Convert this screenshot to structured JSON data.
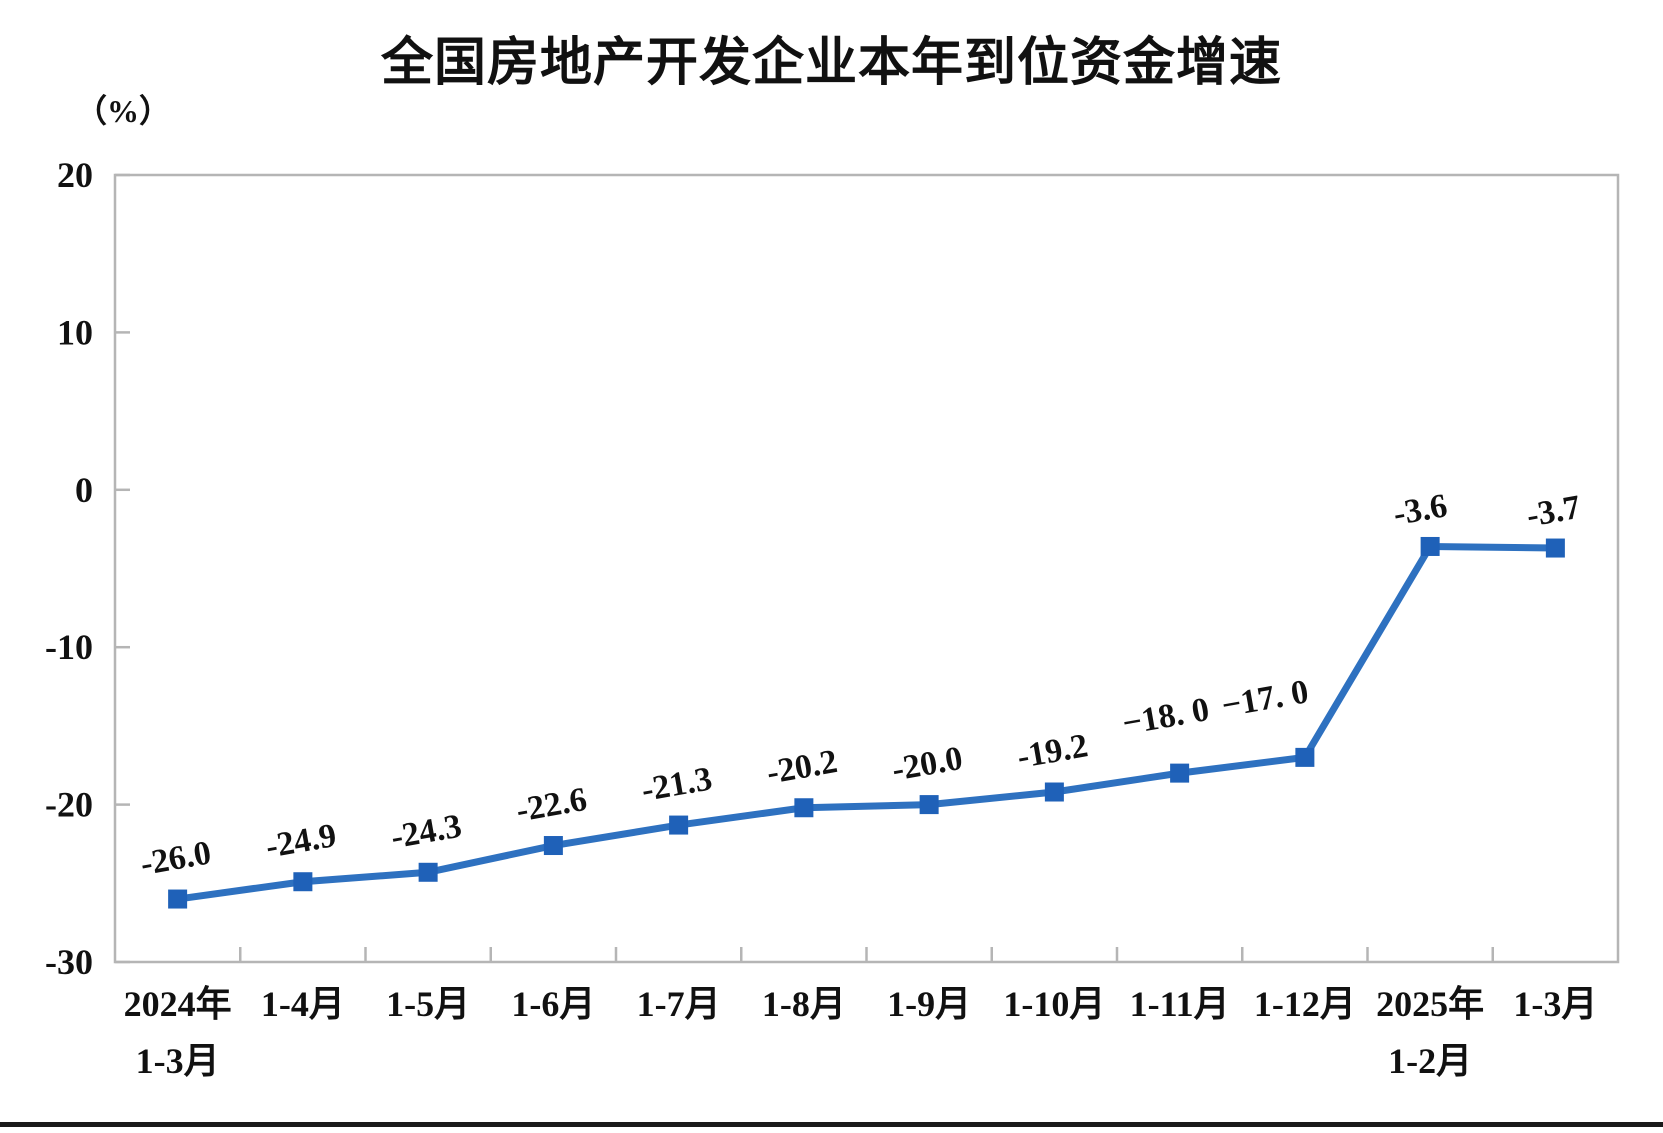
{
  "page": {
    "background": "#ffffff"
  },
  "chart_data": {
    "type": "line",
    "title": "全国房地产开发企业本年到位资金增速",
    "ylabel": "（%）",
    "xlabel": "",
    "categories": [
      [
        "2024年",
        "1-3月"
      ],
      [
        "1-4月"
      ],
      [
        "1-5月"
      ],
      [
        "1-6月"
      ],
      [
        "1-7月"
      ],
      [
        "1-8月"
      ],
      [
        "1-9月"
      ],
      [
        "1-10月"
      ],
      [
        "1-11月"
      ],
      [
        "1-12月"
      ],
      [
        "2025年",
        "1-2月"
      ],
      [
        "1-3月"
      ]
    ],
    "values": [
      -26.0,
      -24.9,
      -24.3,
      -22.6,
      -21.3,
      -20.2,
      -20.0,
      -19.2,
      -18.0,
      -17.0,
      -3.6,
      -3.7
    ],
    "data_labels": [
      "-26.0",
      "-24.9",
      "-24.3",
      "-22.6",
      "-21.3",
      "-20.2",
      "-20.0",
      "-19.2",
      "−18. 0",
      "−17. 0",
      "-3.6",
      "-3.7"
    ],
    "ylim": [
      -30,
      20
    ],
    "yticks": [
      20,
      10,
      0,
      -10,
      -20,
      -30
    ],
    "ytick_labels": [
      "20",
      "10",
      "0",
      "-10",
      "-20",
      "-30"
    ],
    "grid": false,
    "legend": "none",
    "line_color": "#2e71c0",
    "marker_color": "#1f61b8",
    "marker_shape": "square",
    "axis_color": "#b5b5b5",
    "text_color": "#111111",
    "label_rotation": -10,
    "label_dx": [
      0,
      0,
      0,
      0,
      0,
      0,
      0,
      0,
      -12,
      -38,
      -8,
      0
    ],
    "label_dy": [
      -30,
      -30,
      -30,
      -30,
      -30,
      -30,
      -30,
      -30,
      -46,
      -48,
      -26,
      -26
    ]
  }
}
